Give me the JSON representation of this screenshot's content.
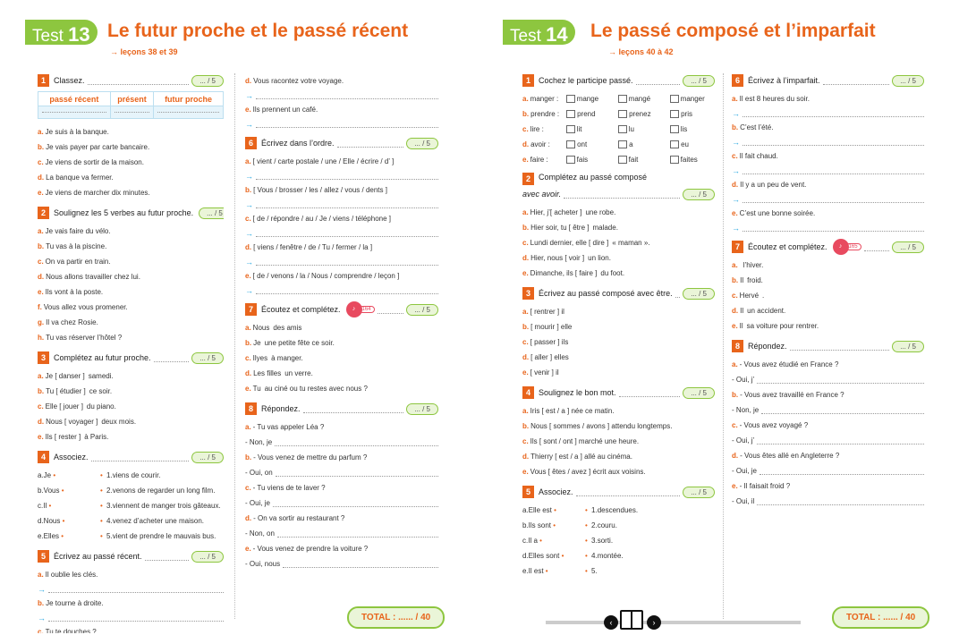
{
  "page_left": {
    "test_label": "Test",
    "test_num": "13",
    "title": "Le futur proche et le passé récent",
    "lecons": "→ leçons 38 et 39",
    "s1": {
      "n": "1",
      "title": "Classez.",
      "score": "... / 5",
      "headers": [
        "passé récent",
        "présent",
        "futur proche"
      ],
      "items": [
        [
          "a.",
          "Je suis à la banque."
        ],
        [
          "b.",
          "Je vais payer par carte bancaire."
        ],
        [
          "c.",
          "Je viens de sortir de la maison."
        ],
        [
          "d.",
          "La banque va fermer."
        ],
        [
          "e.",
          "Je viens de marcher dix minutes."
        ]
      ]
    },
    "s2": {
      "n": "2",
      "title": "Soulignez les 5 verbes au futur proche.",
      "score": "... / 5",
      "items": [
        [
          "a.",
          "Je vais faire du vélo."
        ],
        [
          "b.",
          "Tu vas à la piscine."
        ],
        [
          "c.",
          "On va partir en train."
        ],
        [
          "d.",
          "Nous allons travailler chez lui."
        ],
        [
          "e.",
          "Ils vont à la poste."
        ],
        [
          "f.",
          "Vous allez vous promener."
        ],
        [
          "g.",
          "Il va chez Rosie."
        ],
        [
          "h.",
          "Tu vas réserver l’hôtel ?"
        ]
      ]
    },
    "s3": {
      "n": "3",
      "title": "Complétez au futur proche.",
      "score": "... / 5",
      "items": [
        [
          "a.",
          "Je [ danser ]",
          "samedi."
        ],
        [
          "b.",
          "Tu [ étudier ]",
          "ce soir."
        ],
        [
          "c.",
          "Elle [ jouer ]",
          "du piano."
        ],
        [
          "d.",
          "Nous [ voyager ]",
          "deux mois."
        ],
        [
          "e.",
          "Ils [ rester ]",
          "à Paris."
        ]
      ]
    },
    "s4": {
      "n": "4",
      "title": "Associez.",
      "score": "... / 5",
      "items": [
        [
          "a.",
          "Je",
          "1.",
          "viens de courir."
        ],
        [
          "b.",
          "Vous",
          "2.",
          "venons de regarder un long film."
        ],
        [
          "c.",
          "Il",
          "3.",
          "viennent de manger trois gâteaux."
        ],
        [
          "d.",
          "Nous",
          "4.",
          "venez d’acheter une maison."
        ],
        [
          "e.",
          "Elles",
          "5.",
          "vient de prendre le mauvais bus."
        ]
      ]
    },
    "s5": {
      "n": "5",
      "title": "Écrivez au passé récent.",
      "score": "... / 5",
      "items": [
        [
          "a.",
          "Il oublie les clés."
        ],
        [
          "b.",
          "Je tourne à droite."
        ],
        [
          "c.",
          "Tu te douches ?"
        ]
      ]
    },
    "s5b": {
      "items": [
        [
          "d.",
          "Vous racontez votre voyage."
        ],
        [
          "e.",
          "Ils prennent un café."
        ]
      ]
    },
    "s6": {
      "n": "6",
      "title": "Écrivez dans l’ordre.",
      "score": "... / 5",
      "items": [
        [
          "a.",
          "[ vient / carte postale / une / Elle / écrire / d’ ]"
        ],
        [
          "b.",
          "[ Vous / brosser / les / allez / vous / dents ]"
        ],
        [
          "c.",
          "[ de / répondre / au / Je / viens / téléphone ]"
        ],
        [
          "d.",
          "[ viens / fenêtre / de / Tu / fermer / la ]"
        ],
        [
          "e.",
          "[ de / venons / la / Nous / comprendre / leçon ]"
        ]
      ]
    },
    "s7": {
      "n": "7",
      "title": "Écoutez et complétez.",
      "score": "... / 5",
      "audio": "164",
      "items": [
        [
          "a.",
          "Nous",
          "des amis"
        ],
        [
          "b.",
          "Je",
          "une petite fête ce soir."
        ],
        [
          "c.",
          "Ilyes",
          "à manger."
        ],
        [
          "d.",
          "Les filles",
          "un verre."
        ],
        [
          "e.",
          "Tu",
          "au ciné ou tu restes avec nous ?"
        ]
      ]
    },
    "s8": {
      "n": "8",
      "title": "Répondez.",
      "score": "... / 5",
      "items": [
        [
          "a.",
          "- Tu vas appeler Léa ?",
          "- Non, je"
        ],
        [
          "b.",
          "- Vous venez de mettre du parfum ?",
          "- Oui, on"
        ],
        [
          "c.",
          "- Tu viens de te laver ?",
          "- Oui, je"
        ],
        [
          "d.",
          "- On va sortir au restaurant ?",
          "- Non, on"
        ],
        [
          "e.",
          "- Vous venez de prendre la voiture ?",
          "- Oui, nous"
        ]
      ]
    },
    "total": "TOTAL : ...... / 40"
  },
  "page_right": {
    "test_label": "Test",
    "test_num": "14",
    "title": "Le passé composé et l’imparfait",
    "lecons": "→ leçons 40 à 42",
    "s1": {
      "n": "1",
      "title": "Cochez le participe passé.",
      "score": "... / 5",
      "items": [
        [
          "a.",
          "manger :",
          "mange",
          "mangé",
          "manger"
        ],
        [
          "b.",
          "prendre :",
          "prend",
          "prenez",
          "pris"
        ],
        [
          "c.",
          "lire :",
          "lit",
          "lu",
          "lis"
        ],
        [
          "d.",
          "avoir :",
          "ont",
          "a",
          "eu"
        ],
        [
          "e.",
          "faire :",
          "fais",
          "fait",
          "faites"
        ]
      ]
    },
    "s2": {
      "n": "2",
      "title": "Complétez au passé composé",
      "title2": "avec avoir.",
      "score": "... / 5",
      "items": [
        [
          "a.",
          "Hier, j’[ acheter ]",
          "une robe."
        ],
        [
          "b.",
          "Hier soir, tu [ être ]",
          "malade."
        ],
        [
          "c.",
          "Lundi dernier, elle [ dire ]",
          "« maman »."
        ],
        [
          "d.",
          "Hier, nous [ voir ]",
          "un lion."
        ],
        [
          "e.",
          "Dimanche, ils [ faire ]",
          "du foot."
        ]
      ]
    },
    "s3": {
      "n": "3",
      "title": "Écrivez au passé composé avec être.",
      "score": "... / 5",
      "items": [
        [
          "a.",
          "[ rentrer ] il"
        ],
        [
          "b.",
          "[ mourir ] elle"
        ],
        [
          "c.",
          "[ passer ] ils"
        ],
        [
          "d.",
          "[ aller ] elles"
        ],
        [
          "e.",
          "[ venir ] il"
        ]
      ]
    },
    "s4": {
      "n": "4",
      "title": "Soulignez le bon mot.",
      "score": "... / 5",
      "items": [
        [
          "a.",
          "Iris [ est / a ] née ce matin."
        ],
        [
          "b.",
          "Nous [ sommes / avons ] attendu longtemps."
        ],
        [
          "c.",
          "Ils [ sont / ont ] marché une heure."
        ],
        [
          "d.",
          "Thierry [ est / a ] allé au cinéma."
        ],
        [
          "e.",
          "Vous [ êtes / avez ] écrit aux voisins."
        ]
      ]
    },
    "s5": {
      "n": "5",
      "title": "Associez.",
      "score": "... / 5",
      "items": [
        [
          "a.",
          "Elle est",
          "1.",
          "descendues."
        ],
        [
          "b.",
          "Ils sont",
          "2.",
          "couru."
        ],
        [
          "c.",
          "Il a",
          "3.",
          "sorti."
        ],
        [
          "d.",
          "Elles sont",
          "4.",
          "montée."
        ],
        [
          "e.",
          "Il est",
          "5.",
          ""
        ]
      ]
    },
    "s6": {
      "n": "6",
      "title": "Écrivez à l’imparfait.",
      "score": "... / 5",
      "items": [
        [
          "a.",
          "Il est 8 heures du soir."
        ],
        [
          "b.",
          "C’est l’été."
        ],
        [
          "c.",
          "Il fait chaud."
        ],
        [
          "d.",
          "Il y a un peu de vent."
        ],
        [
          "e.",
          "C’est une bonne soirée."
        ]
      ]
    },
    "s7": {
      "n": "7",
      "title": "Écoutez et complétez.",
      "score": "... / 5",
      "audio": "165",
      "items": [
        [
          "a.",
          "",
          "l’hiver."
        ],
        [
          "b.",
          "Il",
          "froid."
        ],
        [
          "c.",
          "Hervé",
          "."
        ],
        [
          "d.",
          "Il",
          "un accident."
        ],
        [
          "e.",
          "Il",
          "sa voiture pour rentrer."
        ]
      ]
    },
    "s8": {
      "n": "8",
      "title": "Répondez.",
      "score": "... / 5",
      "items": [
        [
          "a.",
          "- Vous avez étudié en France ?",
          "- Oui, j’"
        ],
        [
          "b.",
          "- Vous avez travaillé en France ?",
          "- Non, je"
        ],
        [
          "c.",
          "- Vous avez voyagé ?",
          "- Oui, j’"
        ],
        [
          "d.",
          "- Vous êtes allé en Angleterre ?",
          "- Oui, je"
        ],
        [
          "e.",
          "- Il faisait froid ?",
          "- Oui, il"
        ]
      ]
    },
    "total": "TOTAL : ...... / 40"
  },
  "nav": {
    "prev": "‹",
    "next": "›"
  }
}
